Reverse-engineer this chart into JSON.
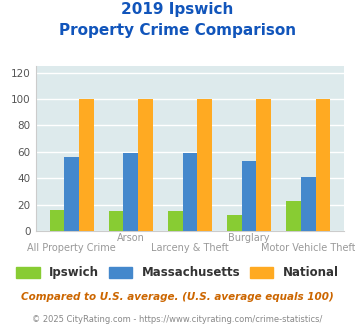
{
  "title_line1": "2019 Ipswich",
  "title_line2": "Property Crime Comparison",
  "categories": [
    "All Property Crime",
    "Arson",
    "Larceny & Theft",
    "Burglary",
    "Motor Vehicle Theft"
  ],
  "top_labels": [
    "",
    "Arson",
    "",
    "Burglary",
    ""
  ],
  "bottom_labels": [
    "All Property Crime",
    "",
    "Larceny & Theft",
    "",
    "Motor Vehicle Theft"
  ],
  "ipswich": [
    16,
    15,
    15,
    12,
    23
  ],
  "massachusetts": [
    56,
    59,
    59,
    53,
    41
  ],
  "national": [
    100,
    100,
    100,
    100,
    100
  ],
  "color_ipswich": "#88cc33",
  "color_massachusetts": "#4488cc",
  "color_national": "#ffaa22",
  "ylabel_ticks": [
    0,
    20,
    40,
    60,
    80,
    100,
    120
  ],
  "ylim": [
    0,
    125
  ],
  "background_color": "#ddeaec",
  "grid_color": "#ffffff",
  "title_color": "#1155bb",
  "xtick_color": "#999999",
  "legend_text_color": "#333333",
  "footnote1": "Compared to U.S. average. (U.S. average equals 100)",
  "footnote2": "© 2025 CityRating.com - https://www.cityrating.com/crime-statistics/",
  "footnote1_color": "#cc6600",
  "footnote2_color": "#888888"
}
